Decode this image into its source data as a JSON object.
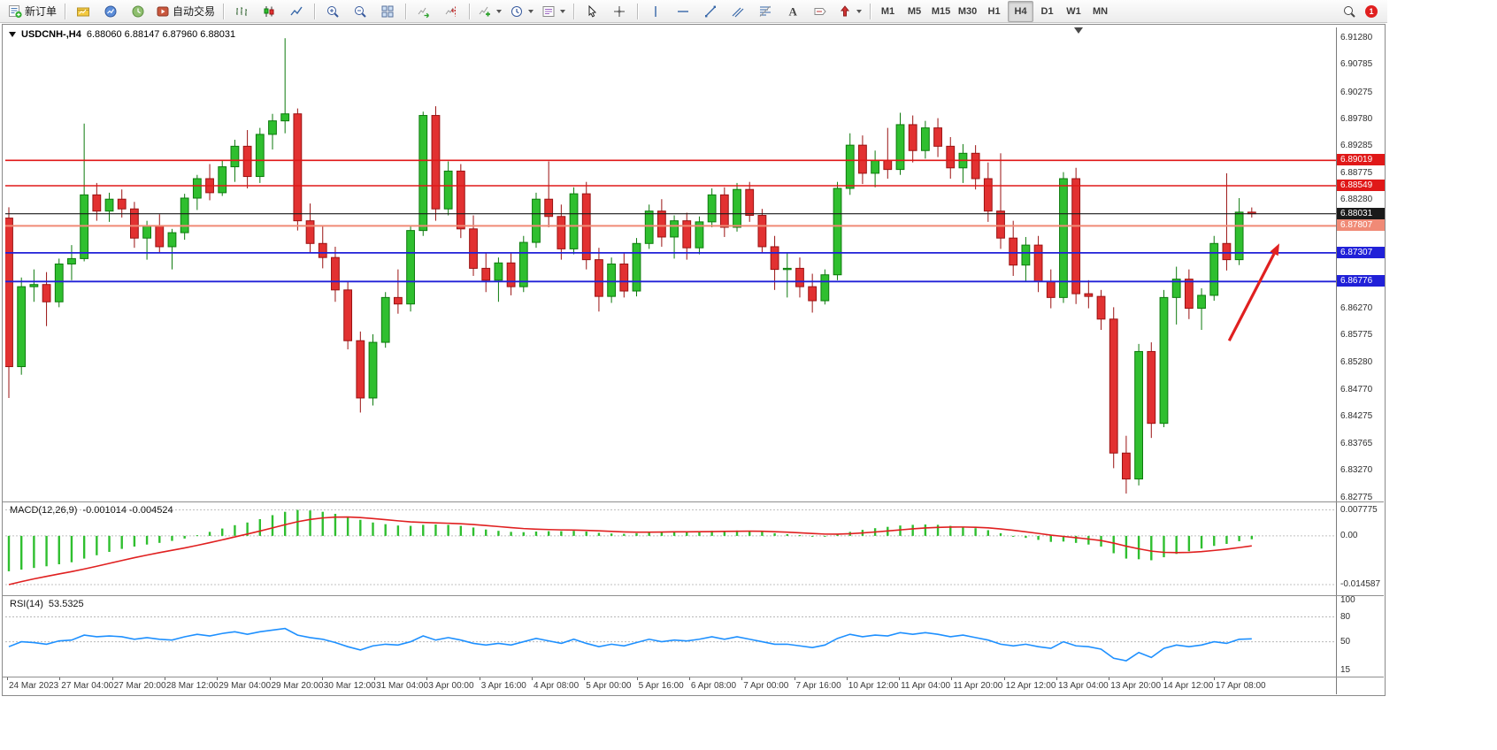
{
  "toolbar": {
    "new_order": "新订单",
    "autotrading": "自动交易",
    "timeframes": [
      "M1",
      "M5",
      "M15",
      "M30",
      "H1",
      "H4",
      "D1",
      "W1",
      "MN"
    ],
    "active_timeframe": "H4",
    "notification_count": "1",
    "tools": [
      "new-order",
      "profiles",
      "market-watch",
      "navigator",
      "autotrading",
      "bar-chart",
      "candlestick-chart",
      "line-chart",
      "zoom-in",
      "zoom-out",
      "tile-windows",
      "auto-scroll",
      "chart-shift",
      "indicators",
      "periods",
      "templates",
      "cursor",
      "crosshair",
      "vertical-line",
      "horizontal-line",
      "trendline",
      "equidistant-channel",
      "fibonacci",
      "text",
      "text-label",
      "arrows",
      "search"
    ]
  },
  "chart_data": [
    {
      "type": "candlestick",
      "title": "USDCNH-,H4",
      "ohlc_text": "6.88060 6.88147 6.87960 6.88031",
      "ohlc_current": {
        "open": "6.88060",
        "high": "6.88147",
        "low": "6.87960",
        "close": "6.88031"
      },
      "ylim": [
        6.8272,
        6.9148
      ],
      "y_ticks": [
        "6.91280",
        "6.90785",
        "6.90275",
        "6.89780",
        "6.89285",
        "6.88775",
        "6.88280",
        "6.87770",
        "6.87275",
        "6.86770",
        "6.86270",
        "6.85775",
        "6.85280",
        "6.84770",
        "6.84275",
        "6.83765",
        "6.83270",
        "6.82775"
      ],
      "x_labels": [
        "24 Mar 2023",
        "27 Mar 04:00",
        "27 Mar 20:00",
        "28 Mar 12:00",
        "29 Mar 04:00",
        "29 Mar 20:00",
        "30 Mar 12:00",
        "31 Mar 04:00",
        "3 Apr 00:00",
        "3 Apr 16:00",
        "4 Apr 08:00",
        "5 Apr 00:00",
        "5 Apr 16:00",
        "6 Apr 08:00",
        "7 Apr 00:00",
        "7 Apr 16:00",
        "10 Apr 12:00",
        "11 Apr 04:00",
        "11 Apr 20:00",
        "12 Apr 12:00",
        "13 Apr 04:00",
        "13 Apr 20:00",
        "14 Apr 12:00",
        "17 Apr 08:00"
      ],
      "hlines": [
        {
          "price": "6.89019",
          "color": "#e01818",
          "width": 1.6
        },
        {
          "price": "6.88549",
          "color": "#e01818",
          "width": 1.6
        },
        {
          "price": "6.88031",
          "color": "#1a1a1a",
          "width": 1.1
        },
        {
          "price": "6.87807",
          "color": "#f08a76",
          "width": 2
        },
        {
          "price": "6.87307",
          "color": "#2020d8",
          "width": 1.8
        },
        {
          "price": "6.86776",
          "color": "#2020d8",
          "width": 1.8
        }
      ],
      "arrow": {
        "color": "#e02020",
        "from_index": 97.2,
        "from_price": 6.8568,
        "to_index": 101.2,
        "to_price": 6.8748
      },
      "colors": {
        "up_fill": "#2fbf2f",
        "up_border": "#0d7a0d",
        "down_fill": "#e23131",
        "down_border": "#9a1212",
        "background": "#ffffff"
      },
      "candles": [
        [
          6.8795,
          6.8815,
          6.8462,
          6.852
        ],
        [
          6.852,
          6.8685,
          6.8505,
          6.8668
        ],
        [
          6.8668,
          6.87,
          6.864,
          6.8672
        ],
        [
          6.8672,
          6.8695,
          6.8595,
          6.864
        ],
        [
          6.864,
          6.872,
          6.863,
          6.871
        ],
        [
          6.871,
          6.8745,
          6.868,
          6.872
        ],
        [
          6.872,
          6.897,
          6.8715,
          6.8838
        ],
        [
          6.8838,
          6.886,
          6.879,
          6.8808
        ],
        [
          6.8808,
          6.8842,
          6.8788,
          6.883
        ],
        [
          6.883,
          6.8848,
          6.8796,
          6.8812
        ],
        [
          6.8812,
          6.8825,
          6.874,
          6.8758
        ],
        [
          6.8758,
          6.879,
          6.8718,
          6.878
        ],
        [
          6.878,
          6.8802,
          6.8732,
          6.8742
        ],
        [
          6.8742,
          6.8775,
          6.87,
          6.8768
        ],
        [
          6.8768,
          6.884,
          6.8755,
          6.8832
        ],
        [
          6.8832,
          6.8875,
          6.881,
          6.8868
        ],
        [
          6.8868,
          6.8895,
          6.8828,
          6.8842
        ],
        [
          6.8842,
          6.8902,
          6.8836,
          6.889
        ],
        [
          6.889,
          6.894,
          6.8862,
          6.8928
        ],
        [
          6.8928,
          6.8958,
          6.885,
          6.8872
        ],
        [
          6.8872,
          6.8962,
          6.886,
          6.895
        ],
        [
          6.895,
          6.8988,
          6.8922,
          6.8975
        ],
        [
          6.8975,
          6.9128,
          6.8952,
          6.8988
        ],
        [
          6.8988,
          6.8998,
          6.8772,
          6.879
        ],
        [
          6.879,
          6.8822,
          6.873,
          6.8748
        ],
        [
          6.8748,
          6.8782,
          6.8702,
          6.8722
        ],
        [
          6.8722,
          6.8742,
          6.864,
          6.8662
        ],
        [
          6.8662,
          6.8678,
          6.8552,
          6.8568
        ],
        [
          6.8568,
          6.8585,
          6.8435,
          6.8462
        ],
        [
          6.8462,
          6.858,
          6.8448,
          6.8565
        ],
        [
          6.8565,
          6.8658,
          6.8555,
          6.8648
        ],
        [
          6.8648,
          6.87,
          6.8618,
          6.8636
        ],
        [
          6.8636,
          6.878,
          6.8622,
          6.8772
        ],
        [
          6.8772,
          6.8992,
          6.8762,
          6.8985
        ],
        [
          6.8985,
          6.9002,
          6.879,
          6.8812
        ],
        [
          6.8812,
          6.89,
          6.88,
          6.8882
        ],
        [
          6.8882,
          6.8895,
          6.8758,
          6.8775
        ],
        [
          6.8775,
          6.88,
          6.8688,
          6.8702
        ],
        [
          6.8702,
          6.8732,
          6.8658,
          6.868
        ],
        [
          6.868,
          6.8722,
          6.864,
          6.8712
        ],
        [
          6.8712,
          6.873,
          6.8652,
          6.8668
        ],
        [
          6.8668,
          6.8762,
          6.8658,
          6.875
        ],
        [
          6.875,
          6.8842,
          6.874,
          6.883
        ],
        [
          6.883,
          6.89,
          6.8778,
          6.8798
        ],
        [
          6.8798,
          6.882,
          6.8718,
          6.8738
        ],
        [
          6.8738,
          6.8852,
          6.8728,
          6.884
        ],
        [
          6.884,
          6.8862,
          6.87,
          6.8718
        ],
        [
          6.8718,
          6.874,
          6.8622,
          6.865
        ],
        [
          6.865,
          6.8722,
          6.8638,
          6.871
        ],
        [
          6.871,
          6.873,
          6.8648,
          6.866
        ],
        [
          6.866,
          6.8758,
          6.865,
          6.8748
        ],
        [
          6.8748,
          6.882,
          6.8738,
          6.8808
        ],
        [
          6.8808,
          6.883,
          6.8742,
          6.876
        ],
        [
          6.876,
          6.88,
          6.872,
          6.879
        ],
        [
          6.879,
          6.8805,
          6.8718,
          6.874
        ],
        [
          6.874,
          6.8798,
          6.8728,
          6.8788
        ],
        [
          6.8788,
          6.885,
          6.8778,
          6.8838
        ],
        [
          6.8838,
          6.8852,
          6.876,
          6.8778
        ],
        [
          6.8778,
          6.886,
          6.877,
          6.8848
        ],
        [
          6.8848,
          6.8862,
          6.8788,
          6.88
        ],
        [
          6.88,
          6.8812,
          6.873,
          6.8742
        ],
        [
          6.8742,
          6.8762,
          6.8662,
          6.87
        ],
        [
          6.87,
          6.8732,
          6.8648,
          6.8702
        ],
        [
          6.8702,
          6.8722,
          6.8648,
          6.8668
        ],
        [
          6.8668,
          6.8692,
          6.862,
          6.8642
        ],
        [
          6.8642,
          6.87,
          6.8635,
          6.869
        ],
        [
          6.869,
          6.8862,
          6.868,
          6.885
        ],
        [
          6.885,
          6.8952,
          6.8838,
          6.893
        ],
        [
          6.893,
          6.8948,
          6.8858,
          6.8878
        ],
        [
          6.8878,
          6.892,
          6.8852,
          6.8902
        ],
        [
          6.8902,
          6.8962,
          6.8868,
          6.8885
        ],
        [
          6.8885,
          6.899,
          6.8875,
          6.8968
        ],
        [
          6.8968,
          6.8985,
          6.8898,
          6.892
        ],
        [
          6.892,
          6.8975,
          6.8905,
          6.8962
        ],
        [
          6.8962,
          6.898,
          6.8908,
          6.8928
        ],
        [
          6.8928,
          6.8945,
          6.8868,
          6.8888
        ],
        [
          6.8888,
          6.8932,
          6.886,
          6.8915
        ],
        [
          6.8915,
          6.893,
          6.8848,
          6.8868
        ],
        [
          6.8868,
          6.8898,
          6.8788,
          6.8808
        ],
        [
          6.8808,
          6.8915,
          6.8738,
          6.8758
        ],
        [
          6.8758,
          6.879,
          6.8688,
          6.8708
        ],
        [
          6.8708,
          6.876,
          6.8678,
          6.8745
        ],
        [
          6.8745,
          6.8762,
          6.8658,
          6.8678
        ],
        [
          6.8678,
          6.87,
          6.8628,
          6.8648
        ],
        [
          6.8648,
          6.888,
          6.8638,
          6.8868
        ],
        [
          6.8868,
          6.8888,
          6.8636,
          6.8655
        ],
        [
          6.8655,
          6.868,
          6.8628,
          6.865
        ],
        [
          6.865,
          6.8662,
          6.8588,
          6.8608
        ],
        [
          6.8608,
          6.863,
          6.8332,
          6.836
        ],
        [
          6.836,
          6.8392,
          6.8285,
          6.8312
        ],
        [
          6.8312,
          6.8562,
          6.83,
          6.8548
        ],
        [
          6.8548,
          6.8565,
          6.8388,
          6.8415
        ],
        [
          6.8415,
          6.8662,
          6.8408,
          6.8648
        ],
        [
          6.8648,
          6.8705,
          6.8598,
          6.8682
        ],
        [
          6.8682,
          6.87,
          6.8608,
          6.8628
        ],
        [
          6.8628,
          6.8665,
          6.8588,
          6.8652
        ],
        [
          6.8652,
          6.8762,
          6.8642,
          6.8748
        ],
        [
          6.8748,
          6.8878,
          6.8698,
          6.8718
        ],
        [
          6.8718,
          6.8832,
          6.8708,
          6.8806
        ],
        [
          6.8806,
          6.88147,
          6.8796,
          6.88031
        ]
      ]
    },
    {
      "type": "bar",
      "name": "MACD(12,26,9)",
      "values_text": "-0.001014 -0.004524",
      "ylim": [
        -0.0175,
        0.0095
      ],
      "ticks": [
        "0.007775",
        "0.00",
        "-0.014587"
      ],
      "signal_seed": -0.014587,
      "colors": {
        "histogram": "#2fbf2f",
        "signal": "#e02020"
      },
      "histogram": [
        -0.0106,
        -0.0101,
        -0.0096,
        -0.0091,
        -0.0085,
        -0.0079,
        -0.0068,
        -0.0058,
        -0.0048,
        -0.0039,
        -0.0032,
        -0.0026,
        -0.0021,
        -0.0015,
        -0.0008,
        0.0002,
        0.0012,
        0.0022,
        0.0032,
        0.004,
        0.005,
        0.0062,
        0.0072,
        0.007775,
        0.0076,
        0.0072,
        0.0066,
        0.0058,
        0.0048,
        0.004,
        0.0035,
        0.0031,
        0.003,
        0.0033,
        0.0034,
        0.0033,
        0.003,
        0.0025,
        0.0019,
        0.0015,
        0.0012,
        0.0011,
        0.0013,
        0.0014,
        0.0014,
        0.0015,
        0.0013,
        0.0009,
        0.0007,
        0.0006,
        0.0008,
        0.0011,
        0.0013,
        0.0014,
        0.0013,
        0.0013,
        0.0015,
        0.0015,
        0.0016,
        0.0015,
        0.0012,
        0.0008,
        0.0005,
        0.0002,
        -0.0001,
        -0.0002,
        0.0004,
        0.0012,
        0.0018,
        0.0023,
        0.0027,
        0.0031,
        0.0033,
        0.0034,
        0.0033,
        0.003,
        0.0027,
        0.0023,
        0.0017,
        0.0008,
        0.0,
        -0.0006,
        -0.0012,
        -0.0018,
        -0.0017,
        -0.0021,
        -0.0026,
        -0.0032,
        -0.0052,
        -0.0068,
        -0.007,
        -0.0073,
        -0.0064,
        -0.0054,
        -0.0046,
        -0.0038,
        -0.003,
        -0.0024,
        -0.0016,
        -0.001014
      ]
    },
    {
      "type": "line",
      "name": "RSI(14)",
      "value_text": "53.5325",
      "ylim": [
        10,
        103
      ],
      "ticks": [
        "100",
        "80",
        "50",
        "15"
      ],
      "levels": [
        80,
        50
      ],
      "colors": {
        "line": "#1e90ff"
      },
      "values": [
        44,
        50,
        49,
        47,
        51,
        52,
        58,
        56,
        57,
        56,
        53,
        55,
        53,
        52,
        56,
        59,
        57,
        60,
        62,
        59,
        62,
        64,
        66,
        58,
        55,
        53,
        49,
        44,
        40,
        45,
        47,
        46,
        50,
        57,
        52,
        55,
        52,
        48,
        46,
        48,
        46,
        50,
        54,
        51,
        48,
        53,
        48,
        44,
        47,
        45,
        49,
        53,
        50,
        52,
        51,
        53,
        56,
        53,
        56,
        53,
        50,
        47,
        47,
        45,
        43,
        46,
        54,
        59,
        56,
        58,
        57,
        61,
        59,
        61,
        59,
        56,
        58,
        55,
        52,
        47,
        45,
        47,
        44,
        42,
        50,
        45,
        44,
        41,
        30,
        27,
        37,
        31,
        42,
        46,
        44,
        46,
        50,
        48,
        53,
        53.5325
      ]
    }
  ]
}
